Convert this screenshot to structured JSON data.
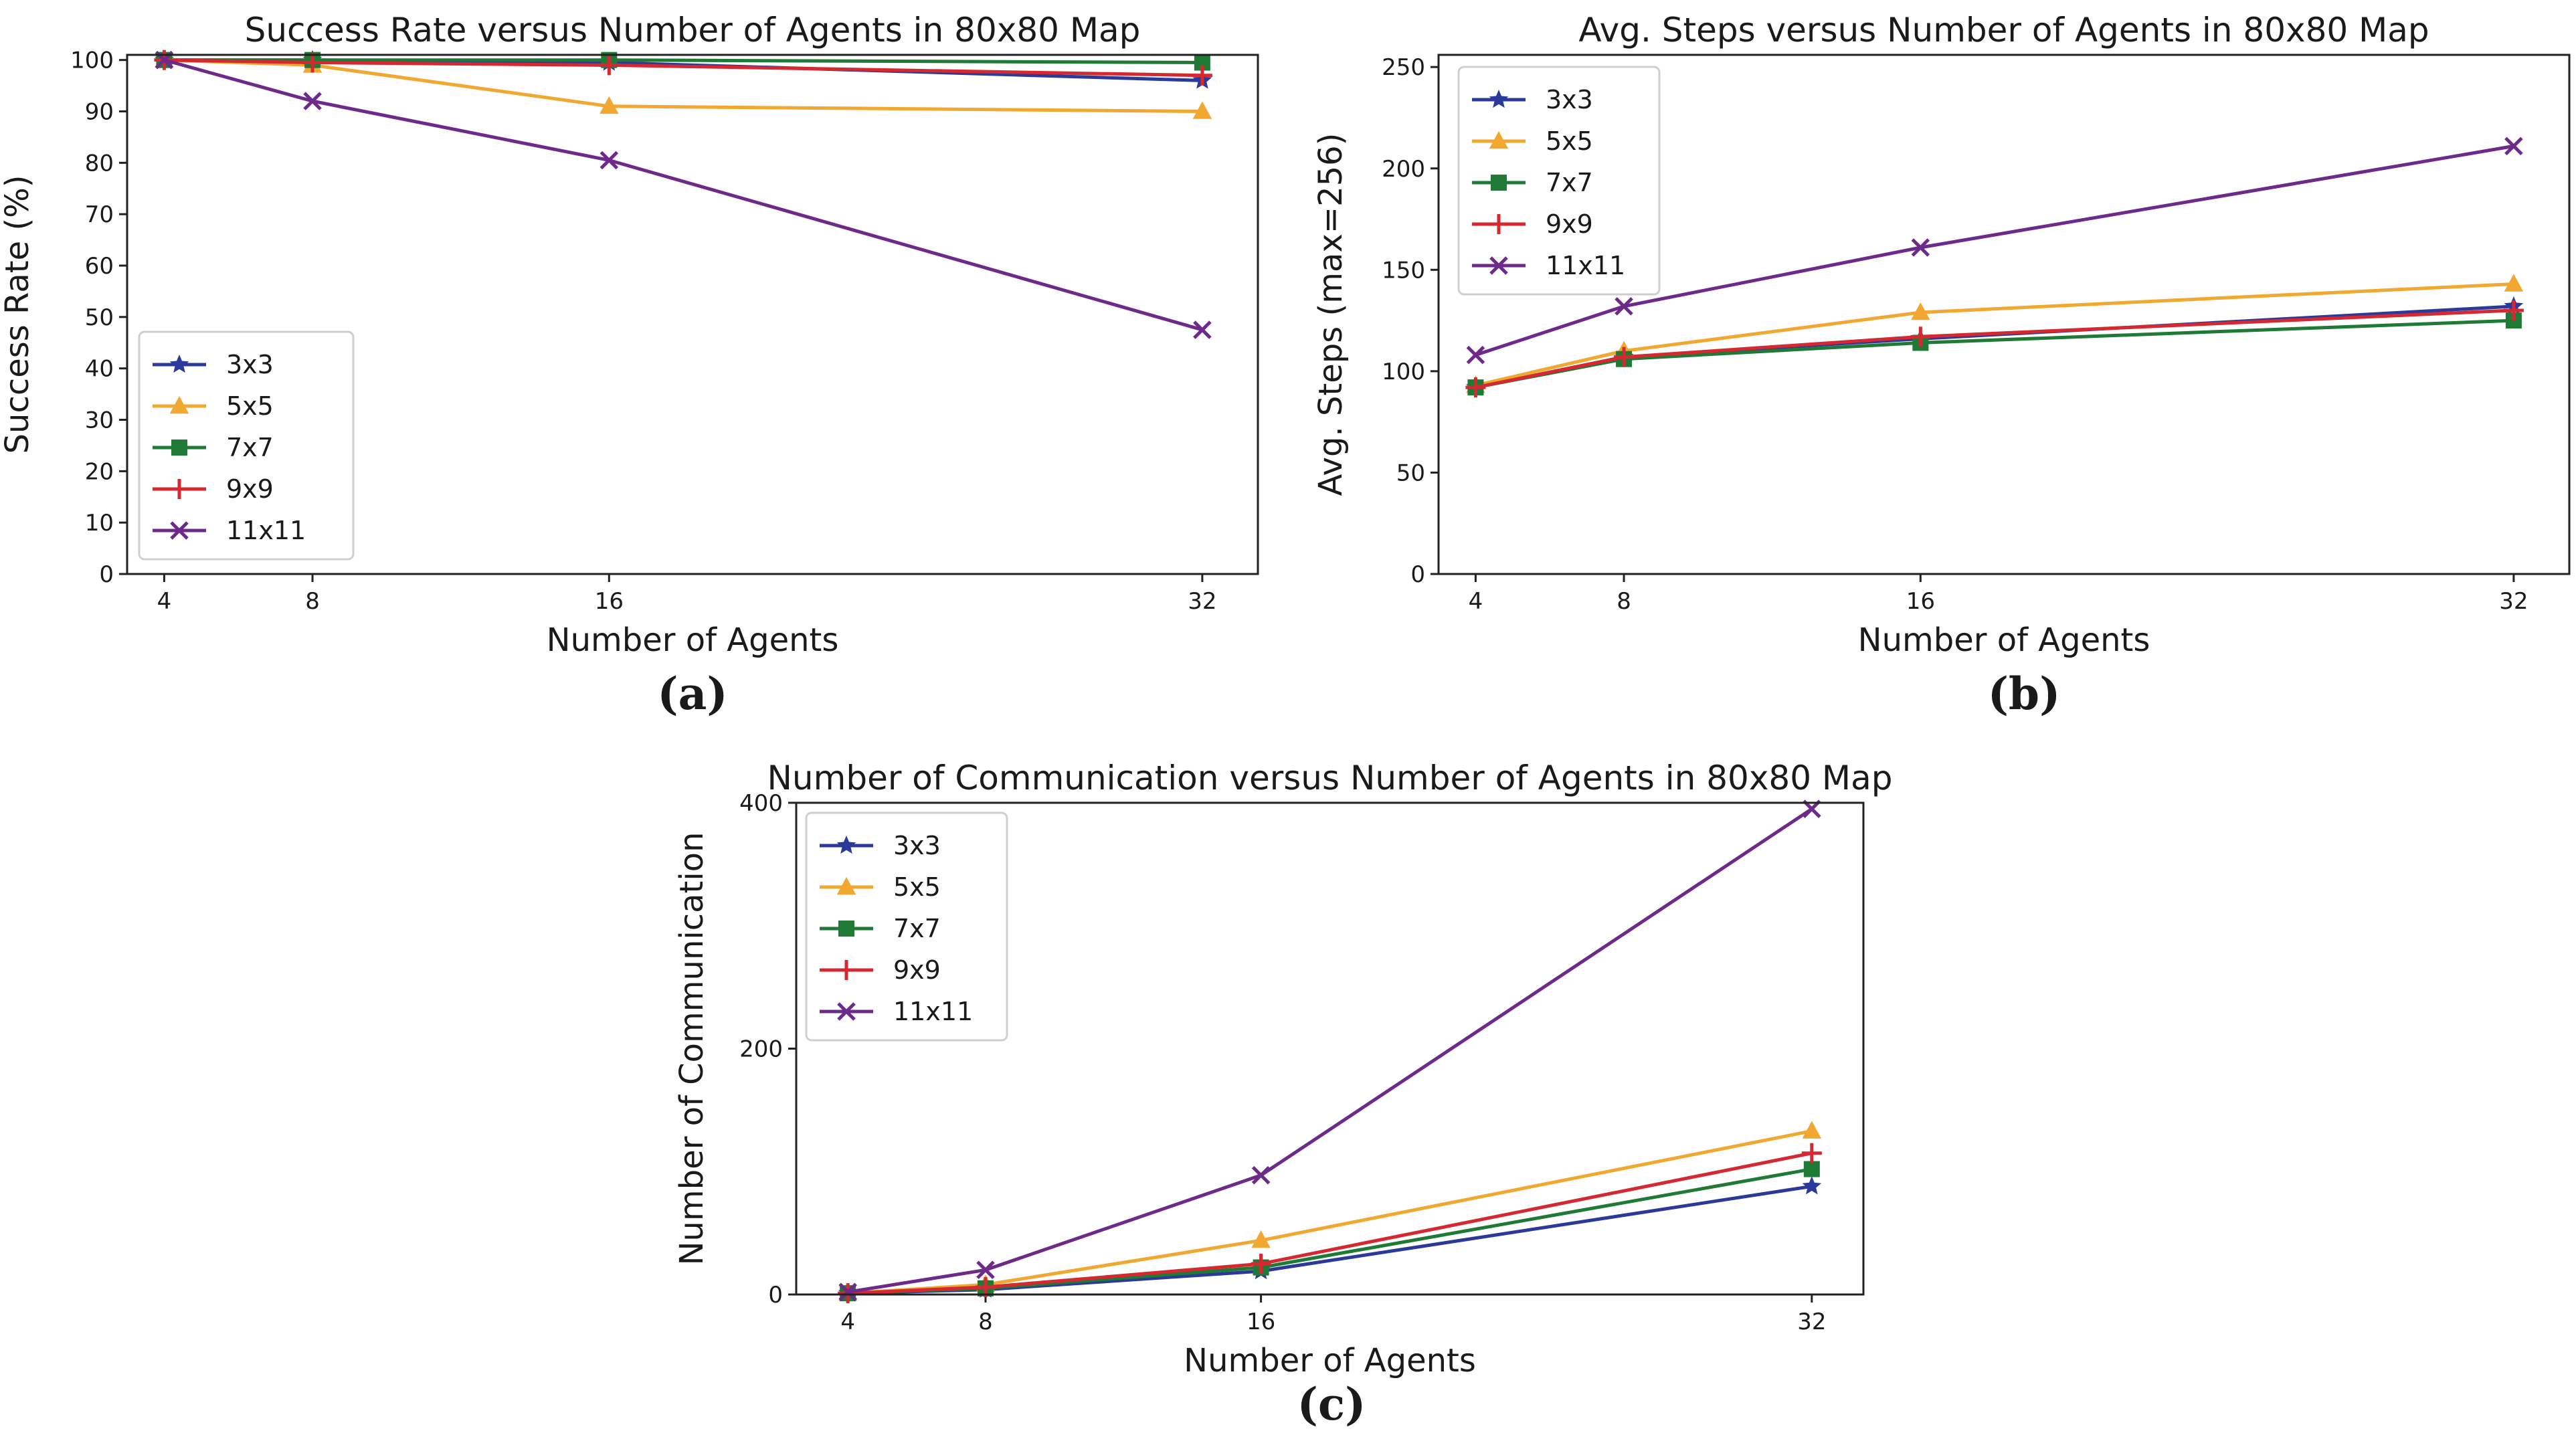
{
  "chart_data": [
    {
      "type": "line",
      "id": "a",
      "title": "Success Rate versus Number of Agents in 80x80 Map",
      "xlabel": "Number of Agents",
      "ylabel": "Success Rate (%)",
      "x": [
        4,
        8,
        16,
        32
      ],
      "xlim": [
        3,
        33.5
      ],
      "ylim": [
        0,
        101
      ],
      "yticks": [
        0,
        10,
        20,
        30,
        40,
        50,
        60,
        70,
        80,
        90,
        100
      ],
      "xticks": [
        4,
        8,
        16,
        32
      ],
      "legend": "lower-left",
      "subfigure_label": "(a)",
      "series": [
        {
          "name": "3x3",
          "values": [
            100,
            100,
            99.5,
            96
          ],
          "color": "#2b3a9a",
          "marker": "star"
        },
        {
          "name": "5x5",
          "values": [
            100,
            99,
            91,
            90
          ],
          "color": "#f0a830",
          "marker": "triangle"
        },
        {
          "name": "7x7",
          "values": [
            100,
            100,
            100,
            99.5
          ],
          "color": "#1e7a35",
          "marker": "square"
        },
        {
          "name": "9x9",
          "values": [
            100,
            99.5,
            99,
            97
          ],
          "color": "#d62830",
          "marker": "plus"
        },
        {
          "name": "11x11",
          "values": [
            100,
            92,
            80.5,
            47.5
          ],
          "color": "#6e2a8a",
          "marker": "x"
        }
      ]
    },
    {
      "type": "line",
      "id": "b",
      "title": "Avg. Steps versus Number of Agents in 80x80 Map",
      "xlabel": "Number of Agents",
      "ylabel": "Avg. Steps (max=256)",
      "x": [
        4,
        8,
        16,
        32
      ],
      "xlim": [
        3,
        33.5
      ],
      "ylim": [
        0,
        256
      ],
      "yticks": [
        0,
        50,
        100,
        150,
        200,
        250
      ],
      "xticks": [
        4,
        8,
        16,
        32
      ],
      "legend": "upper-left",
      "subfigure_label": "(b)",
      "series": [
        {
          "name": "3x3",
          "values": [
            92,
            107,
            116,
            132
          ],
          "color": "#2b3a9a",
          "marker": "star"
        },
        {
          "name": "5x5",
          "values": [
            93,
            110,
            129,
            143
          ],
          "color": "#f0a830",
          "marker": "triangle"
        },
        {
          "name": "7x7",
          "values": [
            92,
            106,
            114,
            125
          ],
          "color": "#1e7a35",
          "marker": "square"
        },
        {
          "name": "9x9",
          "values": [
            92,
            107,
            117,
            130
          ],
          "color": "#d62830",
          "marker": "plus"
        },
        {
          "name": "11x11",
          "values": [
            108,
            132,
            161,
            211
          ],
          "color": "#6e2a8a",
          "marker": "x"
        }
      ]
    },
    {
      "type": "line",
      "id": "c",
      "title": "Number of Communication versus Number of Agents in 80x80 Map",
      "xlabel": "Number of Agents",
      "ylabel": "Number of Communication",
      "x": [
        4,
        8,
        16,
        32
      ],
      "xlim": [
        2.5,
        33.5
      ],
      "ylim": [
        0,
        400
      ],
      "yticks": [
        0,
        200,
        400
      ],
      "xticks": [
        4,
        8,
        16,
        32
      ],
      "legend": "upper-left",
      "subfigure_label": "(c)",
      "series": [
        {
          "name": "3x3",
          "values": [
            1,
            4,
            19,
            88
          ],
          "color": "#2b3a9a",
          "marker": "star"
        },
        {
          "name": "5x5",
          "values": [
            1,
            8,
            44,
            133
          ],
          "color": "#f0a830",
          "marker": "triangle"
        },
        {
          "name": "7x7",
          "values": [
            1,
            5,
            22,
            102
          ],
          "color": "#1e7a35",
          "marker": "square"
        },
        {
          "name": "9x9",
          "values": [
            1,
            6,
            25,
            115
          ],
          "color": "#d62830",
          "marker": "plus"
        },
        {
          "name": "11x11",
          "values": [
            2,
            20,
            97,
            395
          ],
          "color": "#6e2a8a",
          "marker": "x"
        }
      ]
    }
  ]
}
